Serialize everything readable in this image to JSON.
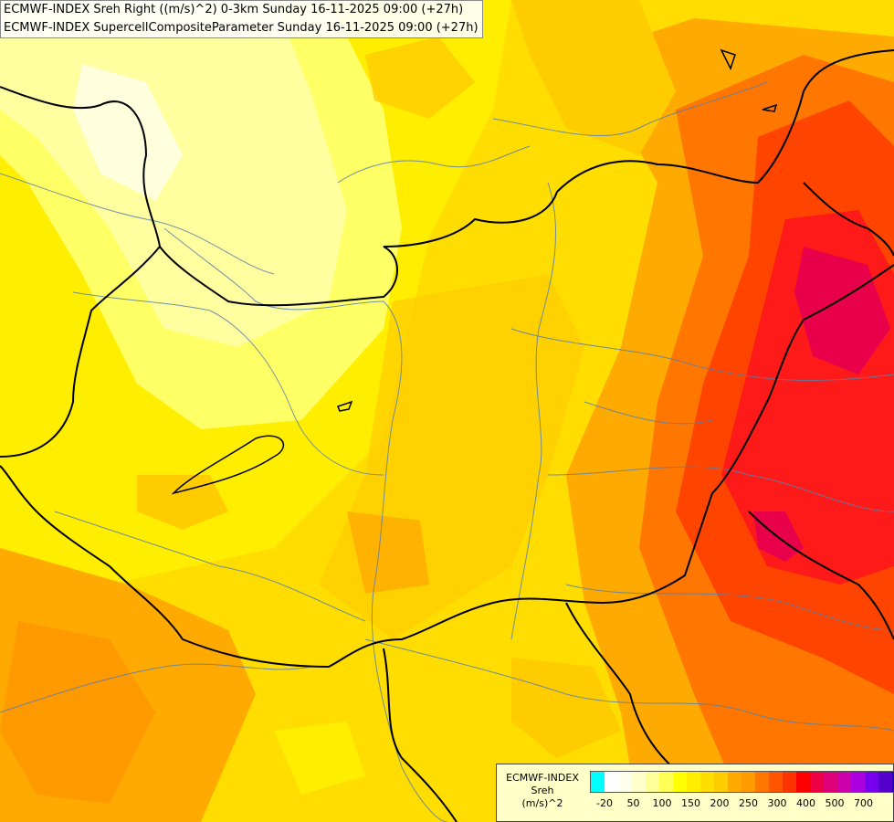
{
  "header": {
    "line1": "ECMWF-INDEX Sreh Right ((m/s)^2) 0-3km Sunday 16-11-2025 09:00 (+27h)",
    "line2": "ECMWF-INDEX SupercellCompositeParameter Sunday 16-11-2025 09:00 (+27h)"
  },
  "legend": {
    "title1": "ECMWF-INDEX",
    "title2": "Sreh",
    "title3": "(m/s)^2",
    "colors": [
      "#00ffff",
      "#ffffff",
      "#ffffee",
      "#ffffcc",
      "#ffff99",
      "#ffff55",
      "#ffff00",
      "#ffee00",
      "#ffdd00",
      "#ffcc00",
      "#ffaa00",
      "#ff9900",
      "#ff7700",
      "#ff5500",
      "#ff3300",
      "#ff0000",
      "#ee0044",
      "#dd0077",
      "#cc00aa",
      "#aa00dd",
      "#7700ee",
      "#5500cc",
      "#2200aa",
      "#000077"
    ],
    "ticks": [
      "-20",
      "50",
      "100",
      "150",
      "200",
      "250",
      "300",
      "400",
      "500",
      "700"
    ]
  },
  "map": {
    "field_colors": {
      "pale": "#ffffcc",
      "light_yellow": "#ffff66",
      "yellow": "#ffee00",
      "gold": "#ffcc00",
      "orange": "#ffaa00",
      "dark_orange": "#ff7700",
      "red_orange": "#ff4400",
      "red": "#ff1a1a",
      "crimson": "#e8004a"
    }
  }
}
